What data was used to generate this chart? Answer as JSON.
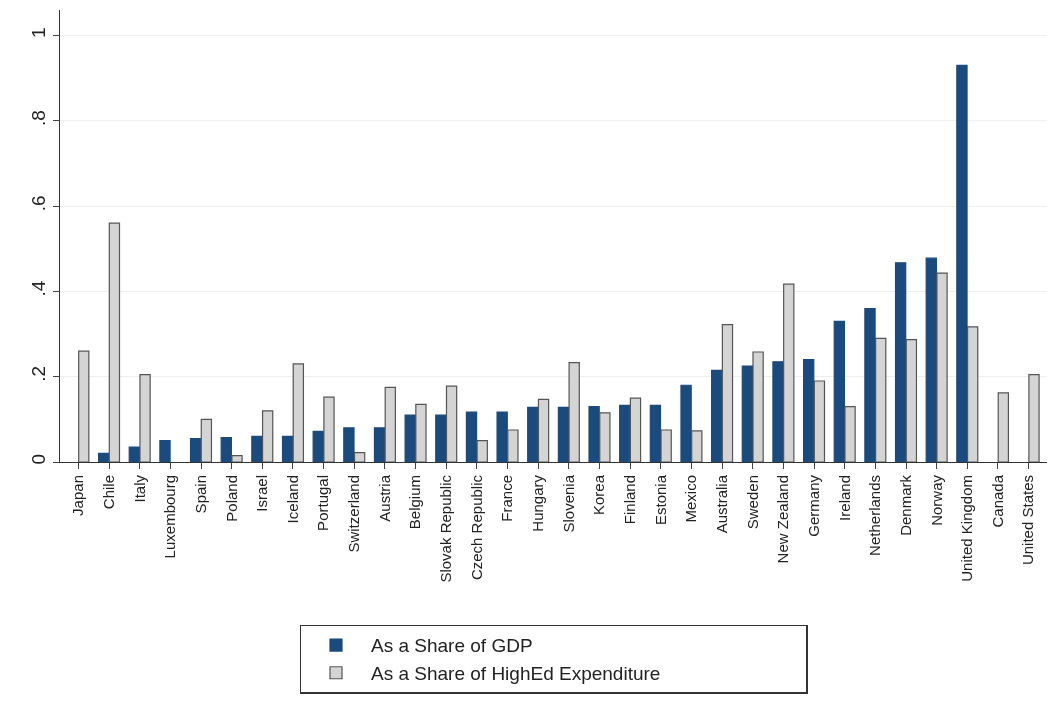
{
  "chart_data": {
    "type": "bar",
    "categories": [
      "Japan",
      "Chile",
      "Italy",
      "Luxembourg",
      "Spain",
      "Poland",
      "Israel",
      "Iceland",
      "Portugal",
      "Switzerland",
      "Austria",
      "Belgium",
      "Slovak Republic",
      "Czech Republic",
      "France",
      "Hungary",
      "Slovenia",
      "Korea",
      "Finland",
      "Estonia",
      "Mexico",
      "Australia",
      "Sweden",
      "New Zealand",
      "Germany",
      "Ireland",
      "Netherlands",
      "Denmark",
      "Norway",
      "United Kingdom",
      "Canada",
      "United States"
    ],
    "series": [
      {
        "name": "As a Share of GDP",
        "color": "#1b4a7c",
        "values": [
          null,
          0.02,
          0.035,
          0.05,
          0.055,
          0.057,
          0.06,
          0.06,
          0.072,
          0.08,
          0.08,
          0.11,
          0.11,
          0.117,
          0.117,
          0.128,
          0.128,
          0.13,
          0.133,
          0.133,
          0.18,
          0.215,
          0.225,
          0.235,
          0.24,
          0.33,
          0.36,
          0.467,
          0.478,
          0.93,
          null,
          null
        ]
      },
      {
        "name": "As a Share of HighEd Expenditure",
        "color": "#d4d4d4",
        "values": [
          0.26,
          0.56,
          0.205,
          null,
          0.1,
          0.015,
          0.12,
          0.23,
          0.152,
          0.022,
          0.175,
          0.135,
          0.178,
          0.05,
          0.075,
          0.147,
          0.233,
          0.115,
          0.15,
          0.075,
          0.073,
          0.322,
          0.258,
          0.417,
          0.19,
          0.13,
          0.29,
          0.287,
          0.443,
          0.317,
          0.162,
          0.205
        ]
      }
    ],
    "ylim": [
      0,
      1.06
    ],
    "yticks": [
      0,
      {
        "value": 0.2,
        "label": ".2"
      },
      {
        "value": 0.4,
        "label": ".4"
      },
      {
        "value": 0.6,
        "label": ".6"
      },
      {
        "value": 0.8,
        "label": ".8"
      },
      1
    ],
    "grid": "y",
    "legend": "bottom"
  }
}
